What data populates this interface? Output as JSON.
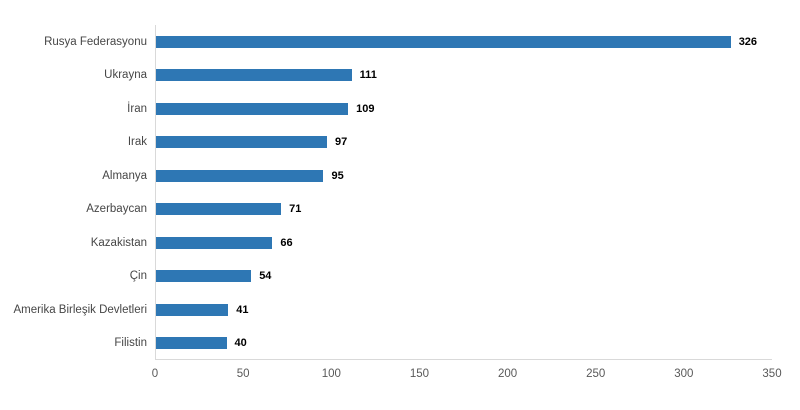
{
  "chart_data": {
    "type": "bar",
    "orientation": "horizontal",
    "title": "",
    "xlabel": "",
    "ylabel": "",
    "categories": [
      "Rusya Federasyonu",
      "Ukrayna",
      "İran",
      "Irak",
      "Almanya",
      "Azerbaycan",
      "Kazakistan",
      "Çin",
      "Amerika Birleşik Devletleri",
      "Filistin"
    ],
    "values": [
      326,
      111,
      109,
      97,
      95,
      71,
      66,
      54,
      41,
      40
    ],
    "x_ticks": [
      0,
      50,
      100,
      150,
      200,
      250,
      300,
      350
    ],
    "xlim": [
      0,
      350
    ],
    "grid": false,
    "legend": false,
    "data_labels": true,
    "colors": {
      "bar": "#2e77b4",
      "category_label": "#464646",
      "value_label": "#000000",
      "tick_label": "#595959",
      "axis_line": "#d9d9d9",
      "background": "#ffffff"
    }
  }
}
